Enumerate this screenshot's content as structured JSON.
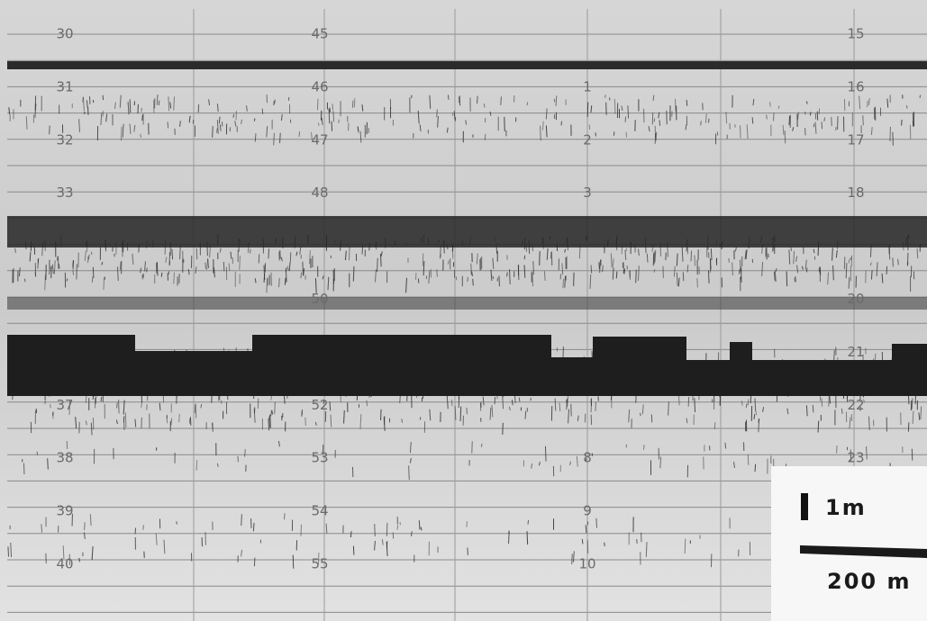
{
  "depth_columns": [
    {
      "labels": [
        "30",
        "31",
        "32",
        "33",
        null,
        null,
        null,
        "37",
        "38",
        "39",
        "40"
      ]
    },
    {
      "labels": [
        "45",
        "46",
        "47",
        "48",
        null,
        "50",
        null,
        "52",
        "53",
        "54",
        "55"
      ]
    },
    {
      "labels": [
        null,
        "1",
        "2",
        "3",
        null,
        null,
        null,
        null,
        "8",
        "9",
        "10"
      ]
    },
    {
      "labels": [
        "15",
        "16",
        "17",
        "18",
        null,
        "20",
        "21",
        "22",
        "23",
        null,
        null
      ]
    }
  ],
  "scale": {
    "vertical": "1m",
    "horizontal": "200 m"
  }
}
